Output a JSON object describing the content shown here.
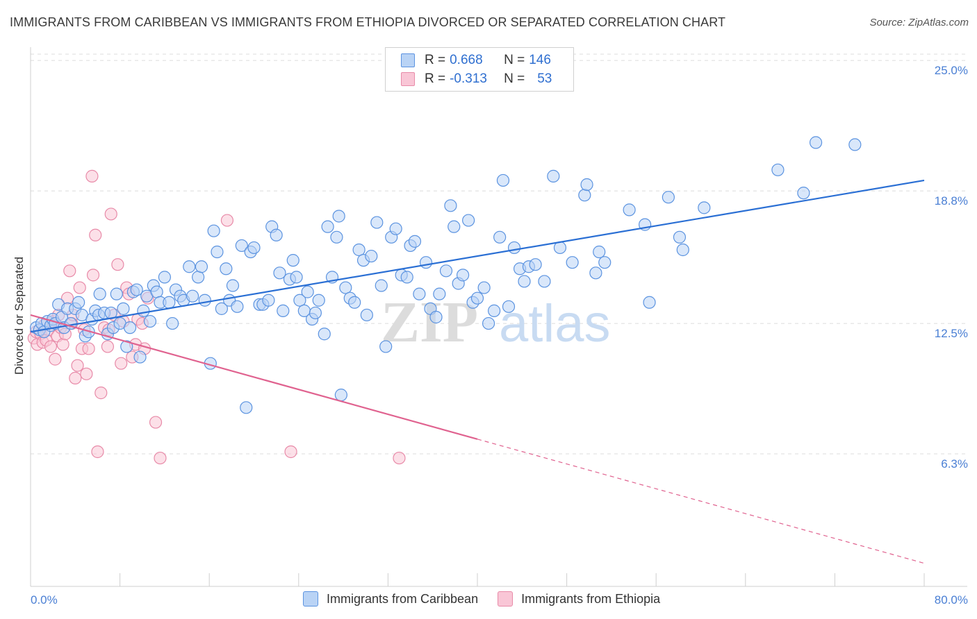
{
  "title": "IMMIGRANTS FROM CARIBBEAN VS IMMIGRANTS FROM ETHIOPIA DIVORCED OR SEPARATED CORRELATION CHART",
  "source": "Source: ZipAtlas.com",
  "watermark": {
    "zip": "ZIP",
    "atlas": "atlas"
  },
  "colors": {
    "caribbean_fill": "#b9d3f5",
    "caribbean_stroke": "#5b93e0",
    "caribbean_line": "#2a6fd4",
    "ethiopia_fill": "#f9c6d6",
    "ethiopia_stroke": "#e88aa8",
    "ethiopia_line": "#e0628f",
    "grid": "#dcdcdc",
    "tick_text": "#4a7fd4"
  },
  "legend": {
    "row1": {
      "r_label": "R =",
      "r_value": "0.668",
      "n_label": "N =",
      "n_value": "146"
    },
    "row2": {
      "r_label": "R =",
      "r_value": "-0.313",
      "n_label": "N =",
      "n_value": "53"
    }
  },
  "chart_data": {
    "type": "scatter",
    "xlabel": "",
    "ylabel": "Divorced or Separated",
    "xlim": [
      0,
      80
    ],
    "ylim": [
      0,
      25.5
    ],
    "x_tick_labels": [
      "0.0%",
      "80.0%"
    ],
    "y_ticks": [
      {
        "value": 6.3,
        "label": "6.3%"
      },
      {
        "value": 12.5,
        "label": "12.5%"
      },
      {
        "value": 18.8,
        "label": "18.8%"
      },
      {
        "value": 25.0,
        "label": "25.0%"
      }
    ],
    "grid": true,
    "legend_position": "bottom",
    "series": [
      {
        "name": "Immigrants from Caribbean",
        "trend": {
          "x": [
            0,
            80
          ],
          "y": [
            12.1,
            19.3
          ],
          "dashed_from": null
        },
        "points": [
          [
            0.5,
            12.3
          ],
          [
            0.8,
            12.2
          ],
          [
            1.0,
            12.5
          ],
          [
            1.2,
            12.1
          ],
          [
            1.5,
            12.6
          ],
          [
            1.8,
            12.4
          ],
          [
            2.0,
            12.7
          ],
          [
            2.2,
            12.5
          ],
          [
            2.5,
            13.4
          ],
          [
            2.8,
            12.8
          ],
          [
            3.0,
            12.3
          ],
          [
            3.3,
            13.2
          ],
          [
            3.6,
            12.5
          ],
          [
            4.0,
            13.2
          ],
          [
            4.3,
            13.5
          ],
          [
            4.6,
            12.9
          ],
          [
            4.9,
            11.9
          ],
          [
            5.2,
            12.1
          ],
          [
            5.5,
            12.7
          ],
          [
            5.8,
            13.1
          ],
          [
            6.1,
            12.9
          ],
          [
            6.2,
            13.9
          ],
          [
            6.6,
            13.0
          ],
          [
            6.9,
            12.0
          ],
          [
            7.2,
            13.0
          ],
          [
            7.4,
            12.3
          ],
          [
            7.7,
            13.9
          ],
          [
            8.0,
            12.5
          ],
          [
            8.3,
            13.2
          ],
          [
            8.6,
            11.4
          ],
          [
            8.9,
            12.3
          ],
          [
            9.2,
            14.0
          ],
          [
            9.5,
            14.1
          ],
          [
            9.8,
            10.9
          ],
          [
            10.1,
            13.1
          ],
          [
            10.4,
            13.8
          ],
          [
            10.7,
            12.6
          ],
          [
            11.0,
            14.3
          ],
          [
            11.3,
            14.0
          ],
          [
            11.6,
            13.5
          ],
          [
            12.0,
            14.7
          ],
          [
            12.4,
            13.5
          ],
          [
            12.7,
            12.5
          ],
          [
            13.0,
            14.1
          ],
          [
            13.4,
            13.8
          ],
          [
            13.7,
            13.6
          ],
          [
            14.2,
            15.2
          ],
          [
            14.5,
            13.8
          ],
          [
            15.0,
            14.7
          ],
          [
            15.3,
            15.2
          ],
          [
            15.6,
            13.6
          ],
          [
            16.1,
            10.6
          ],
          [
            16.4,
            16.9
          ],
          [
            16.7,
            15.9
          ],
          [
            17.1,
            13.2
          ],
          [
            17.5,
            15.1
          ],
          [
            17.8,
            13.6
          ],
          [
            18.1,
            14.3
          ],
          [
            18.5,
            13.3
          ],
          [
            18.9,
            16.2
          ],
          [
            19.3,
            8.5
          ],
          [
            19.7,
            15.9
          ],
          [
            20.0,
            16.1
          ],
          [
            20.5,
            13.4
          ],
          [
            20.8,
            13.4
          ],
          [
            21.3,
            13.6
          ],
          [
            21.6,
            17.1
          ],
          [
            22.0,
            16.7
          ],
          [
            22.3,
            14.9
          ],
          [
            22.6,
            13.1
          ],
          [
            23.2,
            14.6
          ],
          [
            23.5,
            15.5
          ],
          [
            23.8,
            14.7
          ],
          [
            24.1,
            13.6
          ],
          [
            24.5,
            13.1
          ],
          [
            24.8,
            14.0
          ],
          [
            25.2,
            12.7
          ],
          [
            25.5,
            13.0
          ],
          [
            25.8,
            13.6
          ],
          [
            26.3,
            12.0
          ],
          [
            26.6,
            17.1
          ],
          [
            27.0,
            14.7
          ],
          [
            27.4,
            16.6
          ],
          [
            27.6,
            17.6
          ],
          [
            27.8,
            9.1
          ],
          [
            28.2,
            14.2
          ],
          [
            28.6,
            13.7
          ],
          [
            29.0,
            13.5
          ],
          [
            29.4,
            16.0
          ],
          [
            29.8,
            15.5
          ],
          [
            30.1,
            12.9
          ],
          [
            30.5,
            15.7
          ],
          [
            31.0,
            17.3
          ],
          [
            31.4,
            14.3
          ],
          [
            31.8,
            11.4
          ],
          [
            32.3,
            16.6
          ],
          [
            32.7,
            17.0
          ],
          [
            33.2,
            14.8
          ],
          [
            33.7,
            14.7
          ],
          [
            34.0,
            16.2
          ],
          [
            34.4,
            16.4
          ],
          [
            34.8,
            13.9
          ],
          [
            35.4,
            15.4
          ],
          [
            35.8,
            13.2
          ],
          [
            36.3,
            12.8
          ],
          [
            36.6,
            13.9
          ],
          [
            37.2,
            15.0
          ],
          [
            37.6,
            18.1
          ],
          [
            37.9,
            17.1
          ],
          [
            38.3,
            14.4
          ],
          [
            38.7,
            14.8
          ],
          [
            39.2,
            17.4
          ],
          [
            39.6,
            13.5
          ],
          [
            40.0,
            13.7
          ],
          [
            40.6,
            14.2
          ],
          [
            41.0,
            12.5
          ],
          [
            41.5,
            13.1
          ],
          [
            42.0,
            16.6
          ],
          [
            42.3,
            19.3
          ],
          [
            42.8,
            13.3
          ],
          [
            43.3,
            16.1
          ],
          [
            43.8,
            15.1
          ],
          [
            44.2,
            14.5
          ],
          [
            44.6,
            15.2
          ],
          [
            45.2,
            15.3
          ],
          [
            46.0,
            14.5
          ],
          [
            46.8,
            19.5
          ],
          [
            47.4,
            16.1
          ],
          [
            48.5,
            15.4
          ],
          [
            49.6,
            18.6
          ],
          [
            49.8,
            19.1
          ],
          [
            50.6,
            14.9
          ],
          [
            50.9,
            15.9
          ],
          [
            51.4,
            15.4
          ],
          [
            53.6,
            17.9
          ],
          [
            55.0,
            17.2
          ],
          [
            55.4,
            13.5
          ],
          [
            57.1,
            18.5
          ],
          [
            58.1,
            16.6
          ],
          [
            58.4,
            16.0
          ],
          [
            60.3,
            18.0
          ],
          [
            66.9,
            19.8
          ],
          [
            69.2,
            18.7
          ],
          [
            70.3,
            21.1
          ],
          [
            73.8,
            21.0
          ]
        ]
      },
      {
        "name": "Immigrants from Ethiopia",
        "trend": {
          "x": [
            0,
            80
          ],
          "y": [
            12.9,
            1.1
          ],
          "dashed_from": 40
        },
        "points": [
          [
            0.3,
            11.8
          ],
          [
            0.5,
            12.1
          ],
          [
            0.6,
            11.5
          ],
          [
            0.9,
            12.0
          ],
          [
            1.1,
            11.6
          ],
          [
            1.2,
            12.4
          ],
          [
            1.4,
            11.7
          ],
          [
            1.6,
            12.2
          ],
          [
            1.8,
            11.4
          ],
          [
            2.0,
            12.6
          ],
          [
            2.2,
            10.8
          ],
          [
            2.4,
            11.9
          ],
          [
            2.5,
            12.9
          ],
          [
            2.7,
            12.3
          ],
          [
            2.9,
            11.5
          ],
          [
            3.1,
            12.0
          ],
          [
            3.3,
            13.7
          ],
          [
            3.5,
            15.0
          ],
          [
            3.7,
            12.5
          ],
          [
            3.8,
            12.9
          ],
          [
            4.0,
            9.9
          ],
          [
            4.2,
            10.5
          ],
          [
            4.4,
            14.2
          ],
          [
            4.6,
            11.3
          ],
          [
            4.8,
            12.2
          ],
          [
            5.0,
            10.1
          ],
          [
            5.2,
            11.3
          ],
          [
            5.5,
            19.5
          ],
          [
            5.6,
            14.8
          ],
          [
            5.8,
            16.7
          ],
          [
            6.0,
            6.4
          ],
          [
            6.3,
            9.2
          ],
          [
            6.6,
            12.3
          ],
          [
            6.9,
            11.4
          ],
          [
            7.2,
            17.7
          ],
          [
            7.5,
            12.9
          ],
          [
            7.8,
            15.3
          ],
          [
            8.1,
            10.6
          ],
          [
            8.3,
            12.6
          ],
          [
            8.6,
            14.2
          ],
          [
            8.8,
            13.9
          ],
          [
            9.1,
            10.9
          ],
          [
            9.4,
            11.5
          ],
          [
            9.6,
            12.7
          ],
          [
            10.0,
            12.5
          ],
          [
            10.2,
            11.3
          ],
          [
            10.5,
            13.7
          ],
          [
            11.2,
            7.8
          ],
          [
            11.6,
            6.1
          ],
          [
            17.6,
            17.4
          ],
          [
            23.3,
            6.4
          ],
          [
            33.0,
            6.1
          ],
          [
            7.0,
            12.2
          ]
        ]
      }
    ]
  },
  "bottom_legend": {
    "caribbean": "Immigrants from Caribbean",
    "ethiopia": "Immigrants from Ethiopia"
  }
}
